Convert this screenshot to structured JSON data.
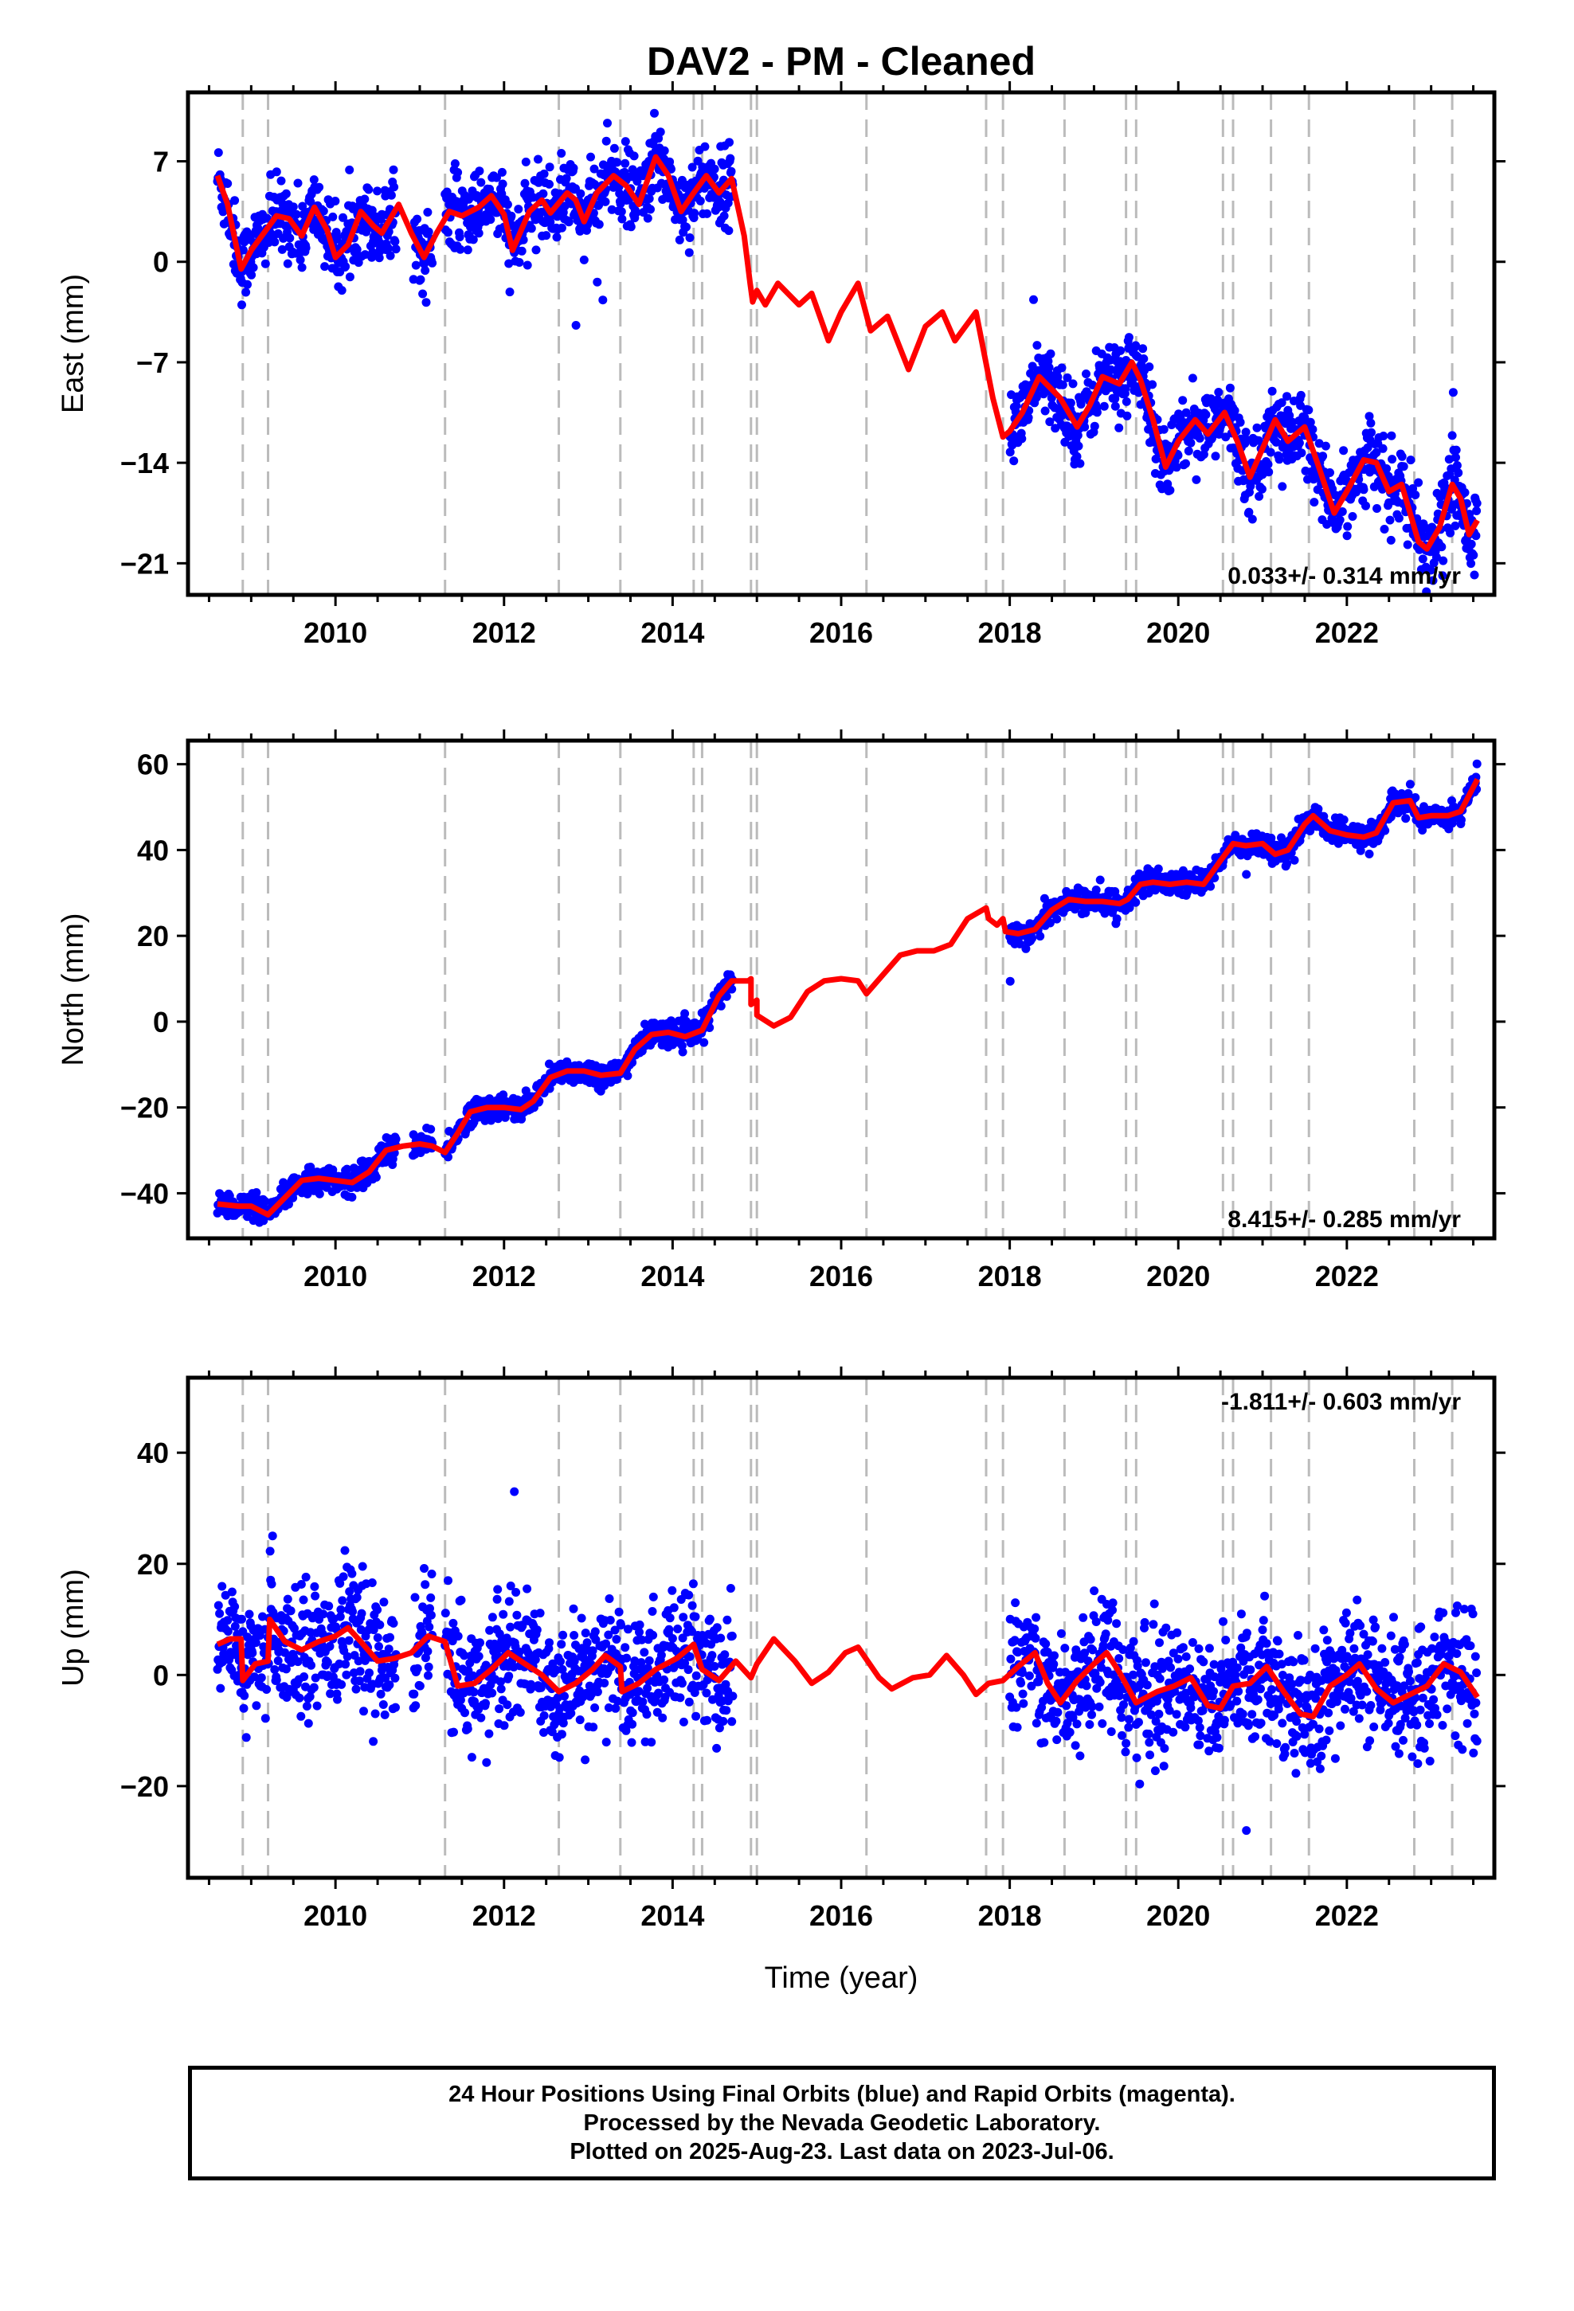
{
  "title": "DAV2  - PM - Cleaned",
  "xlabel": "Time (year)",
  "footer": {
    "line1": "24 Hour Positions Using Final Orbits (blue) and Rapid Orbits (magenta).",
    "line2": "Processed by the Nevada Geodetic Laboratory.",
    "line3": "Plotted on 2025-Aug-23. Last data on 2023-Jul-06."
  },
  "colors": {
    "data": "#0000ff",
    "model": "#ff0000",
    "event_lines": "#bbbbbb",
    "frame": "#000000"
  },
  "chart_data": [
    {
      "type": "scatter",
      "panel": "east",
      "ylabel": "East (mm)",
      "rate_text": "0.033+/- 0.314 mm/yr",
      "xlim": [
        2008.25,
        2023.75
      ],
      "ylim": [
        -23.2,
        11.8
      ],
      "yticks": [
        7,
        0,
        -7,
        -14,
        -21
      ],
      "ytick_labels": [
        "7",
        "0",
        "−7",
        "−14",
        "−21"
      ],
      "xticks": [
        2010,
        2012,
        2014,
        2016,
        2018,
        2020,
        2022
      ],
      "event_lines": [
        2008.9,
        2009.2,
        2011.3,
        2012.65,
        2013.38,
        2014.25,
        2014.35,
        2014.93,
        2015.0,
        2016.3,
        2017.72,
        2017.92,
        2018.65,
        2019.38,
        2019.5,
        2020.53,
        2020.65,
        2021.1,
        2021.55,
        2022.8,
        2023.25
      ],
      "model": [
        [
          2008.6,
          6.0
        ],
        [
          2008.72,
          4.0
        ],
        [
          2008.88,
          -0.5
        ],
        [
          2009.0,
          0.8
        ],
        [
          2009.15,
          2.0
        ],
        [
          2009.3,
          3.2
        ],
        [
          2009.45,
          3.0
        ],
        [
          2009.6,
          1.8
        ],
        [
          2009.75,
          3.8
        ],
        [
          2009.9,
          2.2
        ],
        [
          2010.0,
          0.3
        ],
        [
          2010.15,
          1.2
        ],
        [
          2010.3,
          3.5
        ],
        [
          2010.45,
          2.5
        ],
        [
          2010.55,
          2.0
        ],
        [
          2010.75,
          4.0
        ],
        [
          2010.9,
          2.0
        ],
        [
          2011.05,
          0.3
        ],
        [
          2011.2,
          2.0
        ],
        [
          2011.35,
          3.5
        ],
        [
          2011.5,
          3.2
        ],
        [
          2011.7,
          3.8
        ],
        [
          2011.85,
          4.6
        ],
        [
          2012.0,
          3.3
        ],
        [
          2012.1,
          0.8
        ],
        [
          2012.3,
          3.5
        ],
        [
          2012.45,
          4.3
        ],
        [
          2012.55,
          3.4
        ],
        [
          2012.75,
          4.8
        ],
        [
          2012.85,
          4.3
        ],
        [
          2012.95,
          2.8
        ],
        [
          2013.1,
          4.8
        ],
        [
          2013.3,
          6.0
        ],
        [
          2013.45,
          5.3
        ],
        [
          2013.6,
          4.0
        ],
        [
          2013.8,
          7.3
        ],
        [
          2013.95,
          6.0
        ],
        [
          2014.1,
          3.5
        ],
        [
          2014.25,
          4.8
        ],
        [
          2014.4,
          6.0
        ],
        [
          2014.55,
          4.8
        ],
        [
          2014.7,
          5.8
        ],
        [
          2014.85,
          1.8
        ],
        [
          2014.92,
          -1.5
        ],
        [
          2014.95,
          -2.8
        ],
        [
          2015.0,
          -2.0
        ],
        [
          2015.1,
          -3.0
        ],
        [
          2015.25,
          -1.5
        ],
        [
          2015.5,
          -3.0
        ],
        [
          2015.65,
          -2.2
        ],
        [
          2015.85,
          -5.5
        ],
        [
          2016.0,
          -3.5
        ],
        [
          2016.2,
          -1.5
        ],
        [
          2016.35,
          -4.8
        ],
        [
          2016.55,
          -3.8
        ],
        [
          2016.8,
          -7.5
        ],
        [
          2017.0,
          -4.5
        ],
        [
          2017.2,
          -3.5
        ],
        [
          2017.35,
          -5.5
        ],
        [
          2017.6,
          -3.5
        ],
        [
          2017.8,
          -9.5
        ],
        [
          2017.92,
          -12.2
        ],
        [
          2018.0,
          -11.8
        ],
        [
          2018.15,
          -10.5
        ],
        [
          2018.35,
          -8.0
        ],
        [
          2018.6,
          -9.5
        ],
        [
          2018.8,
          -11.5
        ],
        [
          2018.95,
          -10.0
        ],
        [
          2019.1,
          -8.0
        ],
        [
          2019.3,
          -8.5
        ],
        [
          2019.45,
          -7.0
        ],
        [
          2019.55,
          -8.2
        ],
        [
          2019.7,
          -11.0
        ],
        [
          2019.85,
          -14.3
        ],
        [
          2020.0,
          -12.5
        ],
        [
          2020.2,
          -11.0
        ],
        [
          2020.35,
          -12.0
        ],
        [
          2020.55,
          -10.5
        ],
        [
          2020.7,
          -12.5
        ],
        [
          2020.85,
          -15.0
        ],
        [
          2021.0,
          -13.0
        ],
        [
          2021.15,
          -11.0
        ],
        [
          2021.3,
          -12.5
        ],
        [
          2021.5,
          -11.5
        ],
        [
          2021.65,
          -14.0
        ],
        [
          2021.85,
          -17.5
        ],
        [
          2022.0,
          -16.0
        ],
        [
          2022.2,
          -13.8
        ],
        [
          2022.35,
          -14.0
        ],
        [
          2022.5,
          -16.0
        ],
        [
          2022.65,
          -15.5
        ],
        [
          2022.85,
          -19.5
        ],
        [
          2022.95,
          -20.0
        ],
        [
          2023.1,
          -18.5
        ],
        [
          2023.25,
          -15.5
        ],
        [
          2023.35,
          -16.5
        ],
        [
          2023.45,
          -19.0
        ],
        [
          2023.55,
          -18.0
        ]
      ]
    },
    {
      "type": "scatter",
      "panel": "north",
      "ylabel": "North (mm)",
      "rate_text": "8.415+/- 0.285 mm/yr",
      "xlim": [
        2008.25,
        2023.75
      ],
      "ylim": [
        -50.5,
        65.5
      ],
      "yticks": [
        60,
        40,
        20,
        0,
        -20,
        -40
      ],
      "ytick_labels": [
        "60",
        "40",
        "20",
        "0",
        "−20",
        "−40"
      ],
      "xticks": [
        2010,
        2012,
        2014,
        2016,
        2018,
        2020,
        2022
      ],
      "event_lines": [
        2008.9,
        2009.2,
        2011.3,
        2012.65,
        2013.38,
        2014.25,
        2014.35,
        2014.93,
        2015.0,
        2016.3,
        2017.72,
        2017.92,
        2018.65,
        2019.38,
        2019.5,
        2020.53,
        2020.65,
        2021.1,
        2021.55,
        2022.8,
        2023.25
      ],
      "model": [
        [
          2008.6,
          -42.5
        ],
        [
          2008.85,
          -43.0
        ],
        [
          2009.0,
          -43.0
        ],
        [
          2009.2,
          -45.0
        ],
        [
          2009.25,
          -44.0
        ],
        [
          2009.45,
          -40.0
        ],
        [
          2009.6,
          -37.0
        ],
        [
          2009.8,
          -36.5
        ],
        [
          2010.0,
          -37.0
        ],
        [
          2010.2,
          -37.5
        ],
        [
          2010.4,
          -35.0
        ],
        [
          2010.6,
          -30.0
        ],
        [
          2010.8,
          -29.0
        ],
        [
          2011.0,
          -28.5
        ],
        [
          2011.15,
          -29.0
        ],
        [
          2011.3,
          -30.5
        ],
        [
          2011.45,
          -26.0
        ],
        [
          2011.6,
          -21.0
        ],
        [
          2011.8,
          -20.0
        ],
        [
          2012.0,
          -20.0
        ],
        [
          2012.2,
          -20.5
        ],
        [
          2012.35,
          -18.5
        ],
        [
          2012.55,
          -13.0
        ],
        [
          2012.75,
          -11.5
        ],
        [
          2012.95,
          -11.5
        ],
        [
          2013.15,
          -12.5
        ],
        [
          2013.38,
          -12.0
        ],
        [
          2013.55,
          -6.5
        ],
        [
          2013.75,
          -3.0
        ],
        [
          2013.95,
          -2.5
        ],
        [
          2014.15,
          -3.5
        ],
        [
          2014.35,
          -2.0
        ],
        [
          2014.55,
          6.0
        ],
        [
          2014.7,
          9.5
        ],
        [
          2014.9,
          9.5
        ],
        [
          2014.93,
          10.0
        ],
        [
          2014.93,
          4.0
        ],
        [
          2015.0,
          5.0
        ],
        [
          2015.0,
          1.5
        ],
        [
          2015.2,
          -1.0
        ],
        [
          2015.4,
          1.0
        ],
        [
          2015.6,
          7.0
        ],
        [
          2015.8,
          9.5
        ],
        [
          2016.0,
          10.0
        ],
        [
          2016.2,
          9.5
        ],
        [
          2016.3,
          6.5
        ],
        [
          2016.5,
          11.0
        ],
        [
          2016.7,
          15.5
        ],
        [
          2016.9,
          16.5
        ],
        [
          2017.1,
          16.5
        ],
        [
          2017.3,
          18.0
        ],
        [
          2017.5,
          24.0
        ],
        [
          2017.72,
          26.5
        ],
        [
          2017.75,
          24.0
        ],
        [
          2017.85,
          22.5
        ],
        [
          2017.92,
          24.0
        ],
        [
          2017.95,
          21.0
        ],
        [
          2018.1,
          20.5
        ],
        [
          2018.3,
          21.5
        ],
        [
          2018.5,
          26.0
        ],
        [
          2018.7,
          28.5
        ],
        [
          2018.9,
          28.0
        ],
        [
          2019.1,
          28.0
        ],
        [
          2019.3,
          27.5
        ],
        [
          2019.4,
          28.5
        ],
        [
          2019.55,
          32.0
        ],
        [
          2019.7,
          32.5
        ],
        [
          2019.9,
          32.0
        ],
        [
          2020.1,
          32.5
        ],
        [
          2020.3,
          32.0
        ],
        [
          2020.5,
          37.5
        ],
        [
          2020.65,
          41.5
        ],
        [
          2020.8,
          41.0
        ],
        [
          2021.0,
          41.5
        ],
        [
          2021.15,
          39.0
        ],
        [
          2021.3,
          40.0
        ],
        [
          2021.5,
          46.0
        ],
        [
          2021.6,
          48.0
        ],
        [
          2021.8,
          44.5
        ],
        [
          2022.0,
          43.5
        ],
        [
          2022.2,
          43.0
        ],
        [
          2022.35,
          44.0
        ],
        [
          2022.55,
          51.0
        ],
        [
          2022.75,
          51.5
        ],
        [
          2022.85,
          47.5
        ],
        [
          2023.0,
          48.0
        ],
        [
          2023.2,
          48.0
        ],
        [
          2023.35,
          49.0
        ],
        [
          2023.55,
          56.5
        ]
      ]
    },
    {
      "type": "scatter",
      "panel": "up",
      "ylabel": "Up (mm)",
      "rate_text": "-1.811+/- 0.603 mm/yr",
      "xlim": [
        2008.25,
        2023.75
      ],
      "ylim": [
        -36.5,
        53.5
      ],
      "yticks": [
        40,
        20,
        0,
        -20
      ],
      "ytick_labels": [
        "40",
        "20",
        "0",
        "−20"
      ],
      "xticks": [
        2010,
        2012,
        2014,
        2016,
        2018,
        2020,
        2022
      ],
      "event_lines": [
        2008.9,
        2009.2,
        2011.3,
        2012.65,
        2013.38,
        2014.25,
        2014.35,
        2014.93,
        2015.0,
        2016.3,
        2017.72,
        2017.92,
        2018.65,
        2019.38,
        2019.5,
        2020.53,
        2020.65,
        2021.1,
        2021.55,
        2022.8,
        2023.25
      ],
      "model": [
        [
          2008.6,
          5.5
        ],
        [
          2008.75,
          6.5
        ],
        [
          2008.88,
          6.5
        ],
        [
          2008.9,
          -1.0
        ],
        [
          2009.05,
          2.0
        ],
        [
          2009.2,
          2.5
        ],
        [
          2009.22,
          10.0
        ],
        [
          2009.4,
          6.0
        ],
        [
          2009.6,
          4.5
        ],
        [
          2009.8,
          6.0
        ],
        [
          2010.0,
          7.0
        ],
        [
          2010.15,
          8.5
        ],
        [
          2010.3,
          6.0
        ],
        [
          2010.5,
          2.5
        ],
        [
          2010.7,
          3.0
        ],
        [
          2010.9,
          4.0
        ],
        [
          2011.1,
          7.0
        ],
        [
          2011.3,
          6.0
        ],
        [
          2011.45,
          -2.0
        ],
        [
          2011.65,
          -1.5
        ],
        [
          2011.85,
          1.0
        ],
        [
          2012.05,
          4.0
        ],
        [
          2012.25,
          2.0
        ],
        [
          2012.45,
          0.0
        ],
        [
          2012.65,
          -3.0
        ],
        [
          2012.85,
          -1.5
        ],
        [
          2013.05,
          1.0
        ],
        [
          2013.2,
          3.5
        ],
        [
          2013.38,
          1.5
        ],
        [
          2013.4,
          -3.0
        ],
        [
          2013.6,
          -1.5
        ],
        [
          2013.8,
          1.0
        ],
        [
          2014.05,
          3.0
        ],
        [
          2014.25,
          5.5
        ],
        [
          2014.35,
          1.0
        ],
        [
          2014.55,
          -1.0
        ],
        [
          2014.75,
          2.5
        ],
        [
          2014.93,
          -0.5
        ],
        [
          2015.0,
          2.0
        ],
        [
          2015.2,
          6.5
        ],
        [
          2015.45,
          2.5
        ],
        [
          2015.65,
          -1.5
        ],
        [
          2015.85,
          0.5
        ],
        [
          2016.05,
          4.0
        ],
        [
          2016.2,
          5.0
        ],
        [
          2016.45,
          -0.5
        ],
        [
          2016.6,
          -2.5
        ],
        [
          2016.85,
          -0.5
        ],
        [
          2017.05,
          0.0
        ],
        [
          2017.25,
          3.5
        ],
        [
          2017.45,
          0.0
        ],
        [
          2017.6,
          -3.5
        ],
        [
          2017.75,
          -1.5
        ],
        [
          2017.92,
          -1.0
        ],
        [
          2018.1,
          1.5
        ],
        [
          2018.3,
          4.0
        ],
        [
          2018.45,
          -1.5
        ],
        [
          2018.6,
          -5.0
        ],
        [
          2018.8,
          -1.0
        ],
        [
          2019.0,
          2.0
        ],
        [
          2019.15,
          4.0
        ],
        [
          2019.3,
          0.5
        ],
        [
          2019.5,
          -5.0
        ],
        [
          2019.75,
          -3.0
        ],
        [
          2019.95,
          -2.0
        ],
        [
          2020.15,
          -0.5
        ],
        [
          2020.35,
          -5.5
        ],
        [
          2020.5,
          -6.0
        ],
        [
          2020.65,
          -2.0
        ],
        [
          2020.85,
          -1.5
        ],
        [
          2021.05,
          1.5
        ],
        [
          2021.25,
          -3.0
        ],
        [
          2021.45,
          -7.0
        ],
        [
          2021.6,
          -7.5
        ],
        [
          2021.8,
          -2.0
        ],
        [
          2022.0,
          0.0
        ],
        [
          2022.15,
          2.0
        ],
        [
          2022.35,
          -2.5
        ],
        [
          2022.55,
          -5.0
        ],
        [
          2022.75,
          -3.5
        ],
        [
          2022.95,
          -2.0
        ],
        [
          2023.15,
          2.0
        ],
        [
          2023.35,
          0.5
        ],
        [
          2023.55,
          -4.0
        ]
      ]
    }
  ]
}
